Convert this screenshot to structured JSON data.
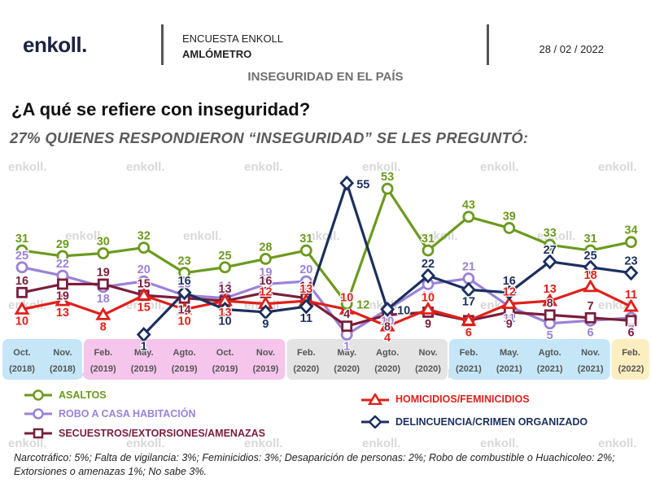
{
  "header": {
    "logo_text": "enkoll.",
    "survey_title": "ENCUESTA ENKOLL",
    "survey_subtitle": "AMLÓMETRO",
    "date": "28 / 02 / 2022",
    "topic": "INSEGURIDAD EN EL PAÍS",
    "question": "¿A qué se refiere con inseguridad?",
    "subquestion": "27% QUIENES RESPONDIERON “INSEGURIDAD” SE LES PREGUNTÓ:"
  },
  "watermark_text": "enkoll.",
  "colors": {
    "asaltos": "#6b9a1e",
    "robo": "#9a82d6",
    "secuestros": "#7a1e3c",
    "homicidios": "#e0201a",
    "delincuencia": "#1c2f5e",
    "band_blue": "#c5e6f7",
    "band_pink": "#f5c5ec",
    "band_gray": "#e4e4e4",
    "band_yellow": "#fbeec0"
  },
  "chart_data": {
    "type": "line",
    "x": [
      "Oct. (2018)",
      "Nov. (2018)",
      "Feb. (2019)",
      "May. (2019)",
      "Agto. (2019)",
      "Oct. (2019)",
      "Nov. (2019)",
      "Feb. (2020)",
      "May. (2020)",
      "Agto. (2020)",
      "Nov. (2020)",
      "Feb. (2021)",
      "May. (2021)",
      "Agto. (2021)",
      "Nov. (2021)",
      "Feb. (2022)"
    ],
    "x_labels": [
      {
        "month": "Oct.",
        "year": "(2018)",
        "band": "blue"
      },
      {
        "month": "Nov.",
        "year": "(2018)",
        "band": "blue"
      },
      {
        "month": "Feb.",
        "year": "(2019)",
        "band": "pink"
      },
      {
        "month": "May.",
        "year": "(2019)",
        "band": "pink"
      },
      {
        "month": "Agto.",
        "year": "(2019)",
        "band": "pink"
      },
      {
        "month": "Oct.",
        "year": "(2019)",
        "band": "pink"
      },
      {
        "month": "Nov.",
        "year": "(2019)",
        "band": "pink"
      },
      {
        "month": "Feb.",
        "year": "(2020)",
        "band": "gray"
      },
      {
        "month": "May.",
        "year": "(2020)",
        "band": "gray"
      },
      {
        "month": "Agto.",
        "year": "(2020)",
        "band": "gray"
      },
      {
        "month": "Nov.",
        "year": "(2020)",
        "band": "gray"
      },
      {
        "month": "Feb.",
        "year": "(2021)",
        "band": "blue"
      },
      {
        "month": "May.",
        "year": "(2021)",
        "band": "blue"
      },
      {
        "month": "Agto.",
        "year": "(2021)",
        "band": "blue"
      },
      {
        "month": "Nov.",
        "year": "(2021)",
        "band": "blue"
      },
      {
        "month": "Feb.",
        "year": "(2022)",
        "band": "yellow"
      }
    ],
    "series": [
      {
        "name": "ASALTOS",
        "key": "asaltos",
        "marker": "circle",
        "values": [
          31,
          29,
          30,
          32,
          23,
          25,
          28,
          31,
          12,
          53,
          31,
          43,
          39,
          33,
          31,
          34
        ]
      },
      {
        "name": "ROBO A CASA HABITACIÓN",
        "key": "robo",
        "marker": "circle",
        "values": [
          25,
          22,
          18,
          20,
          15,
          14,
          19,
          20,
          1,
          10,
          19,
          21,
          11,
          5,
          6,
          7
        ]
      },
      {
        "name": "SECUESTROS/EXTORSIONES/AMENAZAS",
        "key": "secuestros",
        "marker": "square",
        "values": [
          16,
          19,
          19,
          15,
          14,
          13,
          16,
          14,
          4,
          8,
          9,
          6,
          9,
          8,
          7,
          6
        ]
      },
      {
        "name": "HOMICIDIOS/FEMINICIDIOS",
        "key": "homicidios",
        "marker": "triangle",
        "values": [
          10,
          13,
          8,
          15,
          10,
          13,
          12,
          13,
          10,
          4,
          10,
          6,
          12,
          13,
          18,
          11
        ]
      },
      {
        "name": "DELINCUENCIA/CRIMEN ORGANIZADO",
        "key": "delincuencia",
        "marker": "diamond",
        "values": [
          null,
          null,
          null,
          1,
          16,
          10,
          9,
          11,
          55,
          10,
          22,
          17,
          16,
          27,
          25,
          23
        ]
      }
    ],
    "ylim": [
      0,
      60
    ],
    "grid": false
  },
  "footnote": "Narcotráfico: 5%; Falta de vigilancia: 3%; Feminicidios: 3%; Desaparición de personas: 2%; Robo de combustible o Huachicoleo: 2%; Extorsiones o amenazas 1%; No sabe 3%."
}
